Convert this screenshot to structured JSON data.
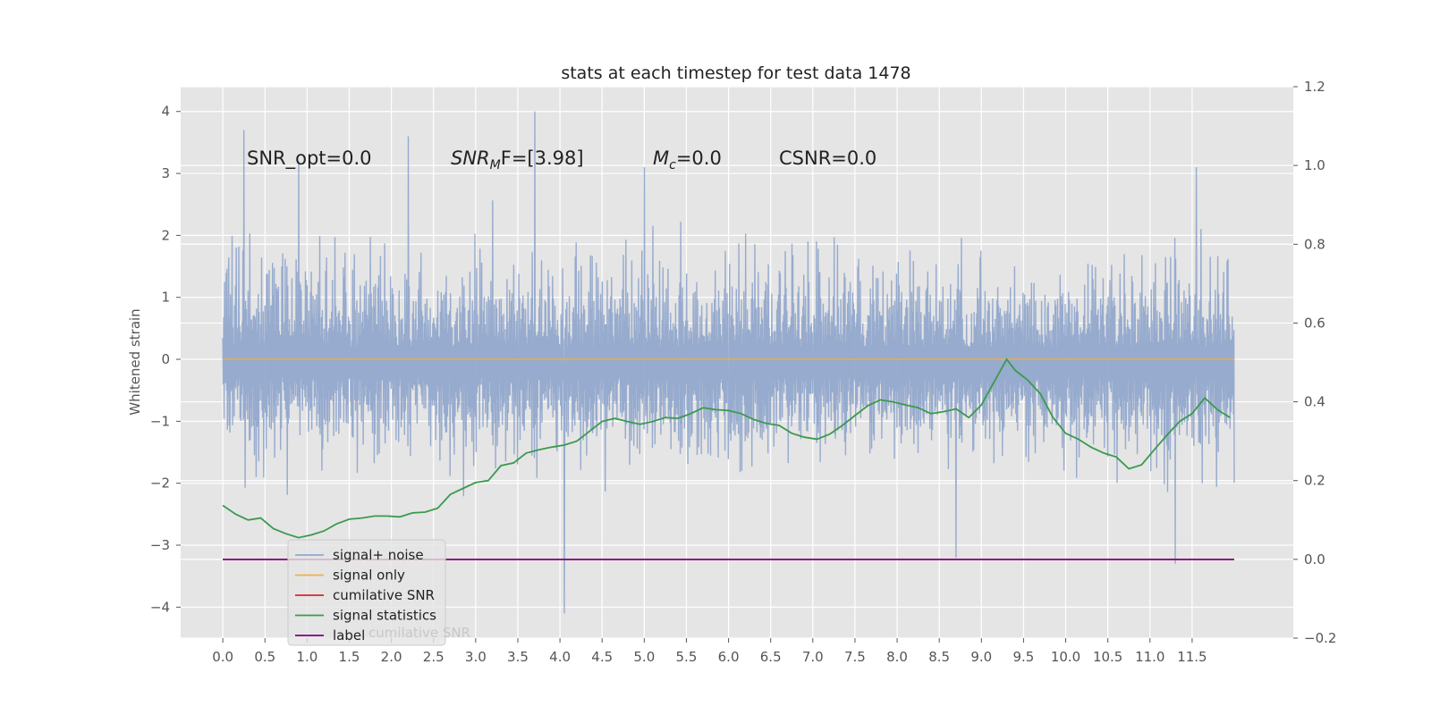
{
  "chart_data": {
    "type": "line",
    "title": "stats at each timestep for test data 1478",
    "ylabel": "Whitened strain",
    "xlim": [
      -0.5,
      12.7
    ],
    "ylim": [
      -4.5,
      4.4
    ],
    "y2lim": [
      -0.2,
      1.2
    ],
    "grid": true,
    "legend_position": "lower-left",
    "x_ticks": [
      "0.0",
      "0.5",
      "1.0",
      "1.5",
      "2.0",
      "2.5",
      "3.0",
      "3.5",
      "4.0",
      "4.5",
      "5.0",
      "5.5",
      "6.0",
      "6.5",
      "7.0",
      "7.5",
      "8.0",
      "8.5",
      "9.0",
      "9.5",
      "10.0",
      "10.5",
      "11.0",
      "11.5"
    ],
    "y_ticks": [
      "4",
      "3",
      "2",
      "1",
      "0",
      "−1",
      "−2",
      "−3",
      "−4"
    ],
    "y2_ticks": [
      "1.2",
      "1.0",
      "0.8",
      "0.6",
      "0.4",
      "0.2",
      "0.0",
      "−0.2"
    ],
    "annotations": {
      "snr_opt": {
        "prefix": "SNR_opt=0.0"
      },
      "snr_mf": {
        "base": "SNR",
        "sub": "M",
        "rest": "F=[3.98]"
      },
      "mc": {
        "base": "M",
        "sub": "c",
        "rest": "=0.0"
      },
      "csnr": {
        "prefix": "CSNR=0.0"
      }
    },
    "series": [
      {
        "name": "signal+ noise",
        "color": "#92a8cc",
        "axis": "left",
        "kind": "noise",
        "x_range": [
          0.0,
          12.0
        ],
        "y_envelope": [
          -2.0,
          2.0
        ],
        "spikes": [
          [
            0.25,
            3.7
          ],
          [
            2.2,
            3.6
          ],
          [
            3.7,
            4.0
          ],
          [
            4.05,
            -4.1
          ],
          [
            6.0,
            -0.6
          ],
          [
            8.7,
            -3.2
          ],
          [
            11.3,
            -3.3
          ],
          [
            11.55,
            3.1
          ],
          [
            0.9,
            3.2
          ],
          [
            5.0,
            3.1
          ]
        ]
      },
      {
        "name": "signal only",
        "color": "#f0b041",
        "axis": "left",
        "x": [
          0.0,
          12.0
        ],
        "y": [
          0.0,
          0.0
        ]
      },
      {
        "name": "cumilative SNR",
        "color": "#d62728",
        "axis": "right",
        "x": [
          0.0,
          12.0
        ],
        "y": [
          0.0,
          0.0
        ]
      },
      {
        "name": "signal statistics",
        "color": "#3a9a4d",
        "axis": "right",
        "x": [
          0.0,
          0.15,
          0.3,
          0.45,
          0.6,
          0.75,
          0.9,
          1.05,
          1.2,
          1.35,
          1.5,
          1.65,
          1.8,
          1.95,
          2.1,
          2.25,
          2.4,
          2.55,
          2.7,
          2.85,
          3.0,
          3.15,
          3.3,
          3.45,
          3.6,
          3.75,
          3.9,
          4.05,
          4.2,
          4.35,
          4.5,
          4.65,
          4.8,
          4.95,
          5.1,
          5.25,
          5.4,
          5.55,
          5.7,
          5.85,
          6.0,
          6.15,
          6.3,
          6.45,
          6.6,
          6.75,
          6.9,
          7.05,
          7.2,
          7.35,
          7.5,
          7.65,
          7.8,
          7.95,
          8.1,
          8.25,
          8.4,
          8.55,
          8.7,
          8.85,
          9.0,
          9.15,
          9.3,
          9.4,
          9.55,
          9.7,
          9.85,
          10.0,
          10.15,
          10.3,
          10.45,
          10.6,
          10.75,
          10.9,
          11.05,
          11.2,
          11.35,
          11.5,
          11.65,
          11.8,
          11.95
        ],
        "y": [
          0.137,
          0.115,
          0.1,
          0.105,
          0.078,
          0.065,
          0.055,
          0.062,
          0.072,
          0.09,
          0.102,
          0.105,
          0.11,
          0.11,
          0.108,
          0.118,
          0.12,
          0.13,
          0.165,
          0.18,
          0.195,
          0.2,
          0.238,
          0.245,
          0.27,
          0.278,
          0.285,
          0.29,
          0.3,
          0.325,
          0.35,
          0.358,
          0.35,
          0.343,
          0.35,
          0.36,
          0.358,
          0.37,
          0.385,
          0.38,
          0.378,
          0.37,
          0.355,
          0.345,
          0.34,
          0.32,
          0.31,
          0.305,
          0.318,
          0.34,
          0.365,
          0.39,
          0.405,
          0.4,
          0.392,
          0.385,
          0.37,
          0.375,
          0.382,
          0.36,
          0.392,
          0.45,
          0.508,
          0.48,
          0.455,
          0.42,
          0.36,
          0.32,
          0.305,
          0.285,
          0.27,
          0.26,
          0.23,
          0.24,
          0.278,
          0.315,
          0.35,
          0.37,
          0.41,
          0.38,
          0.36
        ],
        "smooth": true
      },
      {
        "name": "label",
        "color": "#800080",
        "axis": "right",
        "x": [
          0.0,
          12.0
        ],
        "y": [
          0.0,
          0.0
        ]
      }
    ],
    "legend_ghost_text": "cumilative SNR"
  }
}
